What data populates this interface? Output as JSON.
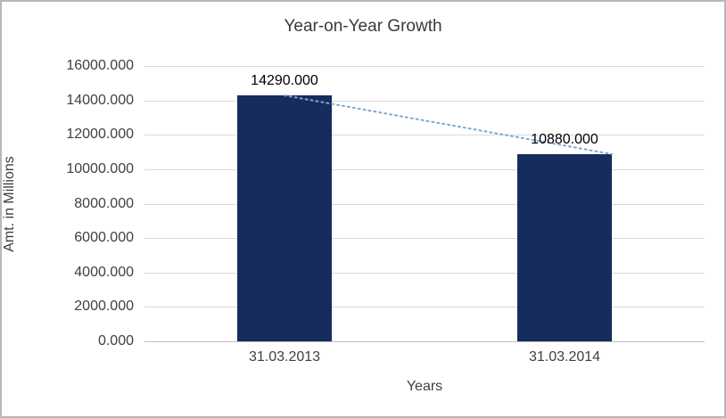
{
  "chart_data": {
    "type": "bar",
    "title": "Year-on-Year Growth",
    "xlabel": "Years",
    "ylabel": "Amt. in Millions",
    "categories": [
      "31.03.2013",
      "31.03.2014"
    ],
    "values": [
      14290,
      10880
    ],
    "data_labels": [
      "14290.000",
      "10880.000"
    ],
    "ylim": [
      0,
      16000
    ],
    "ytick_step": 2000,
    "ytick_labels": [
      "0.000",
      "2000.000",
      "4000.000",
      "6000.000",
      "8000.000",
      "10000.000",
      "12000.000",
      "14000.000",
      "16000.000"
    ],
    "grid": true,
    "legend": "none",
    "bar_color": "#152c5c",
    "trendline": {
      "style": "dotted",
      "color": "#7ea6d4",
      "connects": "bar tops (declining)"
    },
    "gridline_color": "#d9d9d9",
    "axis_line_color": "#bfbfbf",
    "text_color": "#404040"
  }
}
